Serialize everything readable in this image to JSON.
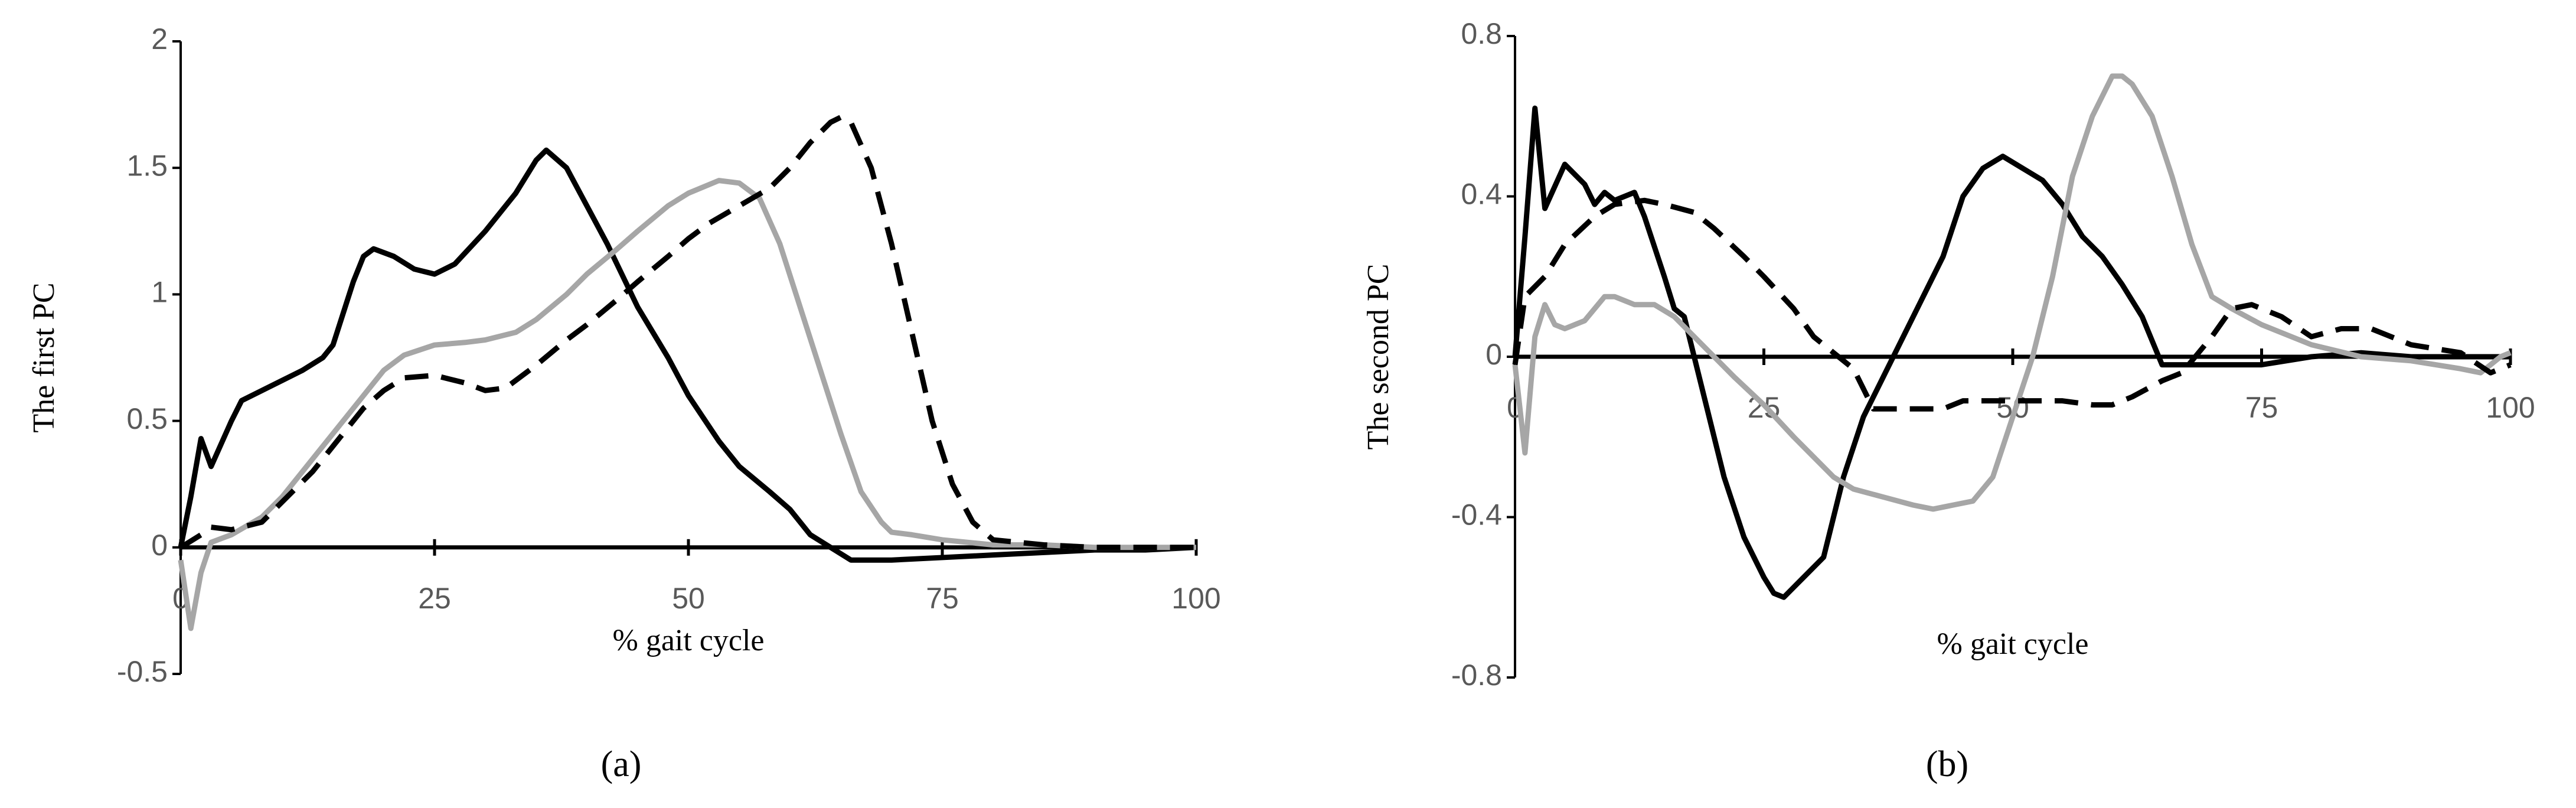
{
  "chart_data": [
    {
      "type": "line",
      "caption": "(a)",
      "y_label": "The first PC",
      "x_label": "% gait cycle",
      "xlim": [
        0,
        100
      ],
      "xticks": [
        0,
        25,
        50,
        75,
        100
      ],
      "ylim": [
        -0.5,
        2
      ],
      "yticks": [
        -0.5,
        0,
        0.5,
        1,
        1.5,
        2
      ],
      "series": [
        {
          "color": "#000000",
          "dashed": false,
          "x": [
            0,
            1,
            2,
            3,
            5,
            6,
            8,
            10,
            12,
            14,
            15,
            17,
            18,
            19,
            21,
            23,
            25,
            27,
            30,
            33,
            35,
            36,
            38,
            40,
            42,
            45,
            48,
            50,
            53,
            55,
            58,
            60,
            62,
            64,
            66,
            70,
            75,
            80,
            85,
            90,
            95,
            100
          ],
          "values": [
            0,
            0.2,
            0.43,
            0.32,
            0.5,
            0.58,
            0.62,
            0.66,
            0.7,
            0.75,
            0.8,
            1.05,
            1.15,
            1.18,
            1.15,
            1.1,
            1.08,
            1.12,
            1.25,
            1.4,
            1.53,
            1.57,
            1.5,
            1.35,
            1.2,
            0.95,
            0.75,
            0.6,
            0.42,
            0.32,
            0.22,
            0.15,
            0.05,
            0,
            -0.05,
            -0.05,
            -0.04,
            -0.03,
            -0.02,
            -0.01,
            -0.01,
            0
          ]
        },
        {
          "color": "#a6a6a6",
          "dashed": false,
          "x": [
            0,
            1,
            2,
            3,
            5,
            8,
            10,
            12,
            15,
            18,
            20,
            22,
            25,
            28,
            30,
            33,
            35,
            38,
            40,
            43,
            45,
            48,
            50,
            53,
            55,
            57,
            59,
            61,
            63,
            65,
            67,
            69,
            70,
            72,
            75,
            80,
            85,
            90,
            95,
            100
          ],
          "values": [
            -0.05,
            -0.32,
            -0.1,
            0.02,
            0.05,
            0.12,
            0.2,
            0.3,
            0.45,
            0.6,
            0.7,
            0.76,
            0.8,
            0.81,
            0.82,
            0.85,
            0.9,
            1.0,
            1.08,
            1.18,
            1.25,
            1.35,
            1.4,
            1.45,
            1.44,
            1.38,
            1.2,
            0.95,
            0.7,
            0.45,
            0.22,
            0.1,
            0.06,
            0.05,
            0.03,
            0.01,
            0.01,
            0,
            0,
            0
          ]
        },
        {
          "color": "#000000",
          "dashed": true,
          "x": [
            0,
            2,
            3,
            5,
            8,
            10,
            13,
            16,
            18,
            20,
            22,
            25,
            28,
            30,
            32,
            35,
            38,
            40,
            43,
            45,
            48,
            50,
            52,
            55,
            58,
            60,
            62,
            64,
            65,
            66,
            68,
            70,
            72,
            74,
            76,
            78,
            80,
            85,
            90,
            95,
            100
          ],
          "values": [
            0,
            0.05,
            0.08,
            0.07,
            0.1,
            0.18,
            0.3,
            0.45,
            0.55,
            0.62,
            0.67,
            0.68,
            0.65,
            0.62,
            0.63,
            0.72,
            0.82,
            0.88,
            0.98,
            1.05,
            1.15,
            1.22,
            1.28,
            1.35,
            1.42,
            1.5,
            1.6,
            1.68,
            1.7,
            1.68,
            1.5,
            1.2,
            0.85,
            0.5,
            0.25,
            0.1,
            0.03,
            0.01,
            0,
            0,
            0
          ]
        }
      ]
    },
    {
      "type": "line",
      "caption": "(b)",
      "y_label": "The second PC",
      "x_label": "% gait cycle",
      "xlim": [
        0,
        100
      ],
      "xticks": [
        0,
        25,
        50,
        75,
        100
      ],
      "ylim": [
        -0.8,
        0.8
      ],
      "yticks": [
        -0.8,
        -0.4,
        0,
        0.4,
        0.8
      ],
      "series": [
        {
          "color": "#000000",
          "dashed": false,
          "x": [
            0,
            1,
            2,
            3,
            5,
            7,
            8,
            9,
            10,
            12,
            13,
            15,
            16,
            17,
            19,
            21,
            23,
            25,
            26,
            27,
            29,
            31,
            33,
            35,
            37,
            39,
            41,
            43,
            45,
            47,
            49,
            51,
            53,
            55,
            57,
            59,
            61,
            63,
            65,
            67,
            70,
            75,
            80,
            85,
            90,
            95,
            100
          ],
          "values": [
            0,
            0.3,
            0.62,
            0.37,
            0.48,
            0.43,
            0.38,
            0.41,
            0.39,
            0.41,
            0.35,
            0.2,
            0.12,
            0.1,
            -0.1,
            -0.3,
            -0.45,
            -0.55,
            -0.59,
            -0.6,
            -0.55,
            -0.5,
            -0.3,
            -0.15,
            -0.05,
            0.05,
            0.15,
            0.25,
            0.4,
            0.47,
            0.5,
            0.47,
            0.44,
            0.38,
            0.3,
            0.25,
            0.18,
            0.1,
            -0.02,
            -0.02,
            -0.02,
            -0.02,
            0,
            0.01,
            0,
            0,
            0
          ]
        },
        {
          "color": "#a6a6a6",
          "dashed": false,
          "x": [
            0,
            1,
            2,
            3,
            4,
            5,
            7,
            9,
            10,
            12,
            14,
            16,
            18,
            20,
            22,
            25,
            28,
            30,
            32,
            34,
            37,
            40,
            42,
            44,
            46,
            48,
            50,
            52,
            54,
            56,
            58,
            60,
            61,
            62,
            64,
            66,
            68,
            70,
            72,
            75,
            80,
            85,
            90,
            95,
            97,
            99,
            100
          ],
          "values": [
            -0.02,
            -0.24,
            0.05,
            0.13,
            0.08,
            0.07,
            0.09,
            0.15,
            0.15,
            0.13,
            0.13,
            0.1,
            0.05,
            0,
            -0.05,
            -0.12,
            -0.2,
            -0.25,
            -0.3,
            -0.33,
            -0.35,
            -0.37,
            -0.38,
            -0.37,
            -0.36,
            -0.3,
            -0.15,
            0,
            0.2,
            0.45,
            0.6,
            0.7,
            0.7,
            0.68,
            0.6,
            0.45,
            0.28,
            0.15,
            0.12,
            0.08,
            0.03,
            0,
            -0.01,
            -0.03,
            -0.04,
            0,
            0.01
          ]
        },
        {
          "color": "#000000",
          "dashed": true,
          "x": [
            0,
            1,
            3,
            5,
            8,
            10,
            13,
            15,
            18,
            20,
            23,
            25,
            28,
            30,
            32,
            34,
            35,
            36,
            40,
            43,
            45,
            48,
            50,
            55,
            58,
            60,
            62,
            65,
            67,
            70,
            72,
            74,
            77,
            80,
            83,
            86,
            90,
            95,
            98,
            100
          ],
          "values": [
            -0.02,
            0.15,
            0.2,
            0.28,
            0.35,
            0.38,
            0.39,
            0.38,
            0.36,
            0.32,
            0.25,
            0.2,
            0.12,
            0.05,
            0.01,
            -0.03,
            -0.08,
            -0.13,
            -0.13,
            -0.13,
            -0.11,
            -0.11,
            -0.11,
            -0.11,
            -0.12,
            -0.12,
            -0.1,
            -0.06,
            -0.04,
            0.05,
            0.12,
            0.13,
            0.1,
            0.05,
            0.07,
            0.07,
            0.03,
            0.01,
            -0.04,
            -0.02
          ]
        }
      ]
    }
  ]
}
